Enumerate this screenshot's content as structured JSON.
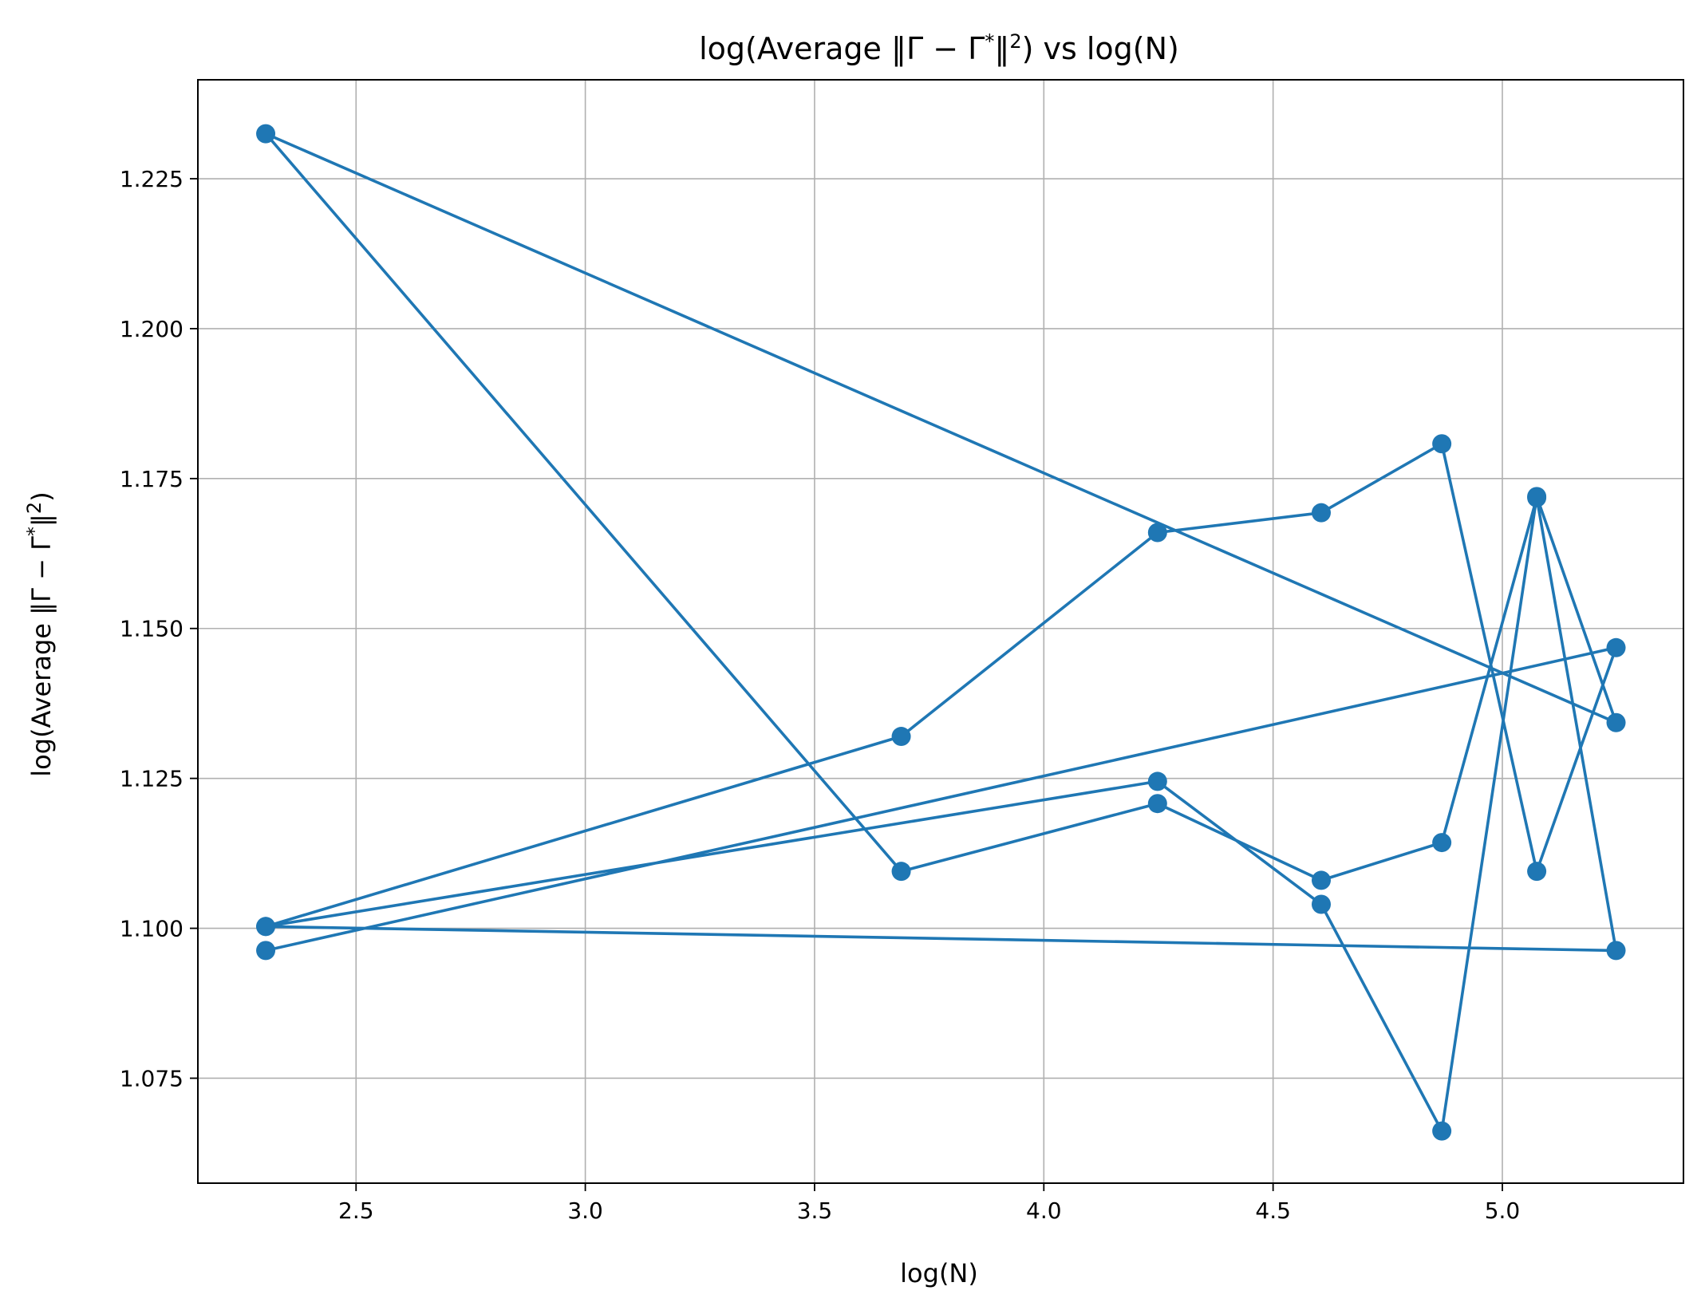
{
  "chart_data": {
    "type": "line",
    "title": {
      "pre": "log(Average ‖Γ − Γ",
      "sup1": "*",
      "mid": "‖",
      "sup2": "2",
      "post": ") vs log(N)"
    },
    "xlabel": "log(N)",
    "ylabel": {
      "pre": "log(Average ‖Γ − Γ",
      "sup1": "*",
      "mid": "‖",
      "sup2": "2",
      "post": ")"
    },
    "xlim": [
      2.155,
      5.395
    ],
    "ylim": [
      1.0575,
      1.2415
    ],
    "xticks": [
      2.5,
      3.0,
      3.5,
      4.0,
      4.5,
      5.0
    ],
    "xtick_labels": [
      "2.5",
      "3.0",
      "3.5",
      "4.0",
      "4.5",
      "5.0"
    ],
    "yticks": [
      1.075,
      1.1,
      1.125,
      1.15,
      1.175,
      1.2,
      1.225
    ],
    "ytick_labels": [
      "1.075",
      "1.100",
      "1.125",
      "1.150",
      "1.175",
      "1.200",
      "1.225"
    ],
    "grid": true,
    "color": "#1f77b4",
    "marker": "circle",
    "series": [
      {
        "x": [
          2.303,
          4.248,
          4.605,
          4.868,
          5.075,
          5.248,
          2.303,
          3.689,
          4.248,
          4.605,
          4.868,
          5.075,
          5.248,
          2.303,
          3.689,
          4.248,
          4.605,
          4.868,
          5.075,
          5.248,
          2.303
        ],
        "y": [
          1.1003,
          1.1245,
          1.104,
          1.0662,
          1.172,
          1.1343,
          1.2325,
          1.1095,
          1.1208,
          1.108,
          1.1143,
          1.1718,
          1.0963,
          1.1003,
          1.132,
          1.166,
          1.1693,
          1.1808,
          1.1095,
          1.1468,
          1.0963
        ]
      }
    ]
  }
}
